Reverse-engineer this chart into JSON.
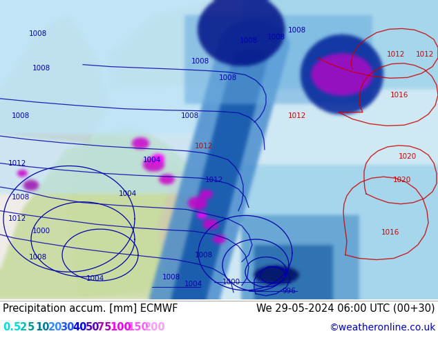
{
  "title_left": "Precipitation accum. [mm] ECMWF",
  "title_right": "We 29-05-2024 06:00 UTC (00+30)",
  "credit": "©weatheronline.co.uk",
  "legend_values": [
    "0.5",
    "2",
    "5",
    "10",
    "20",
    "30",
    "40",
    "50",
    "75",
    "100",
    "150",
    "200"
  ],
  "legend_colors": [
    "#00e5ff",
    "#00cfcf",
    "#00b8b8",
    "#009999",
    "#3399ff",
    "#3366ff",
    "#0000ff",
    "#6600cc",
    "#cc00cc",
    "#ff00ff",
    "#ff55ff",
    "#ff99ff"
  ],
  "bg_color": "#ffffff",
  "text_color": "#000000",
  "title_fontsize": 10.5,
  "legend_fontsize": 10.5,
  "credit_fontsize": 10,
  "figsize": [
    6.34,
    4.9
  ],
  "dpi": 100,
  "bottom_bar_height": 0.115,
  "map_white": "#f5f0ee",
  "map_light_blue": "#b8dff0",
  "map_mid_blue": "#6ab8e8",
  "map_blue": "#3399dd",
  "map_dark_blue": "#0055bb",
  "map_deepest_blue": "#003399",
  "map_magenta": "#ff00ff",
  "map_purple": "#9900cc",
  "land_green": "#c8dba0",
  "land_tan": "#c8b890"
}
